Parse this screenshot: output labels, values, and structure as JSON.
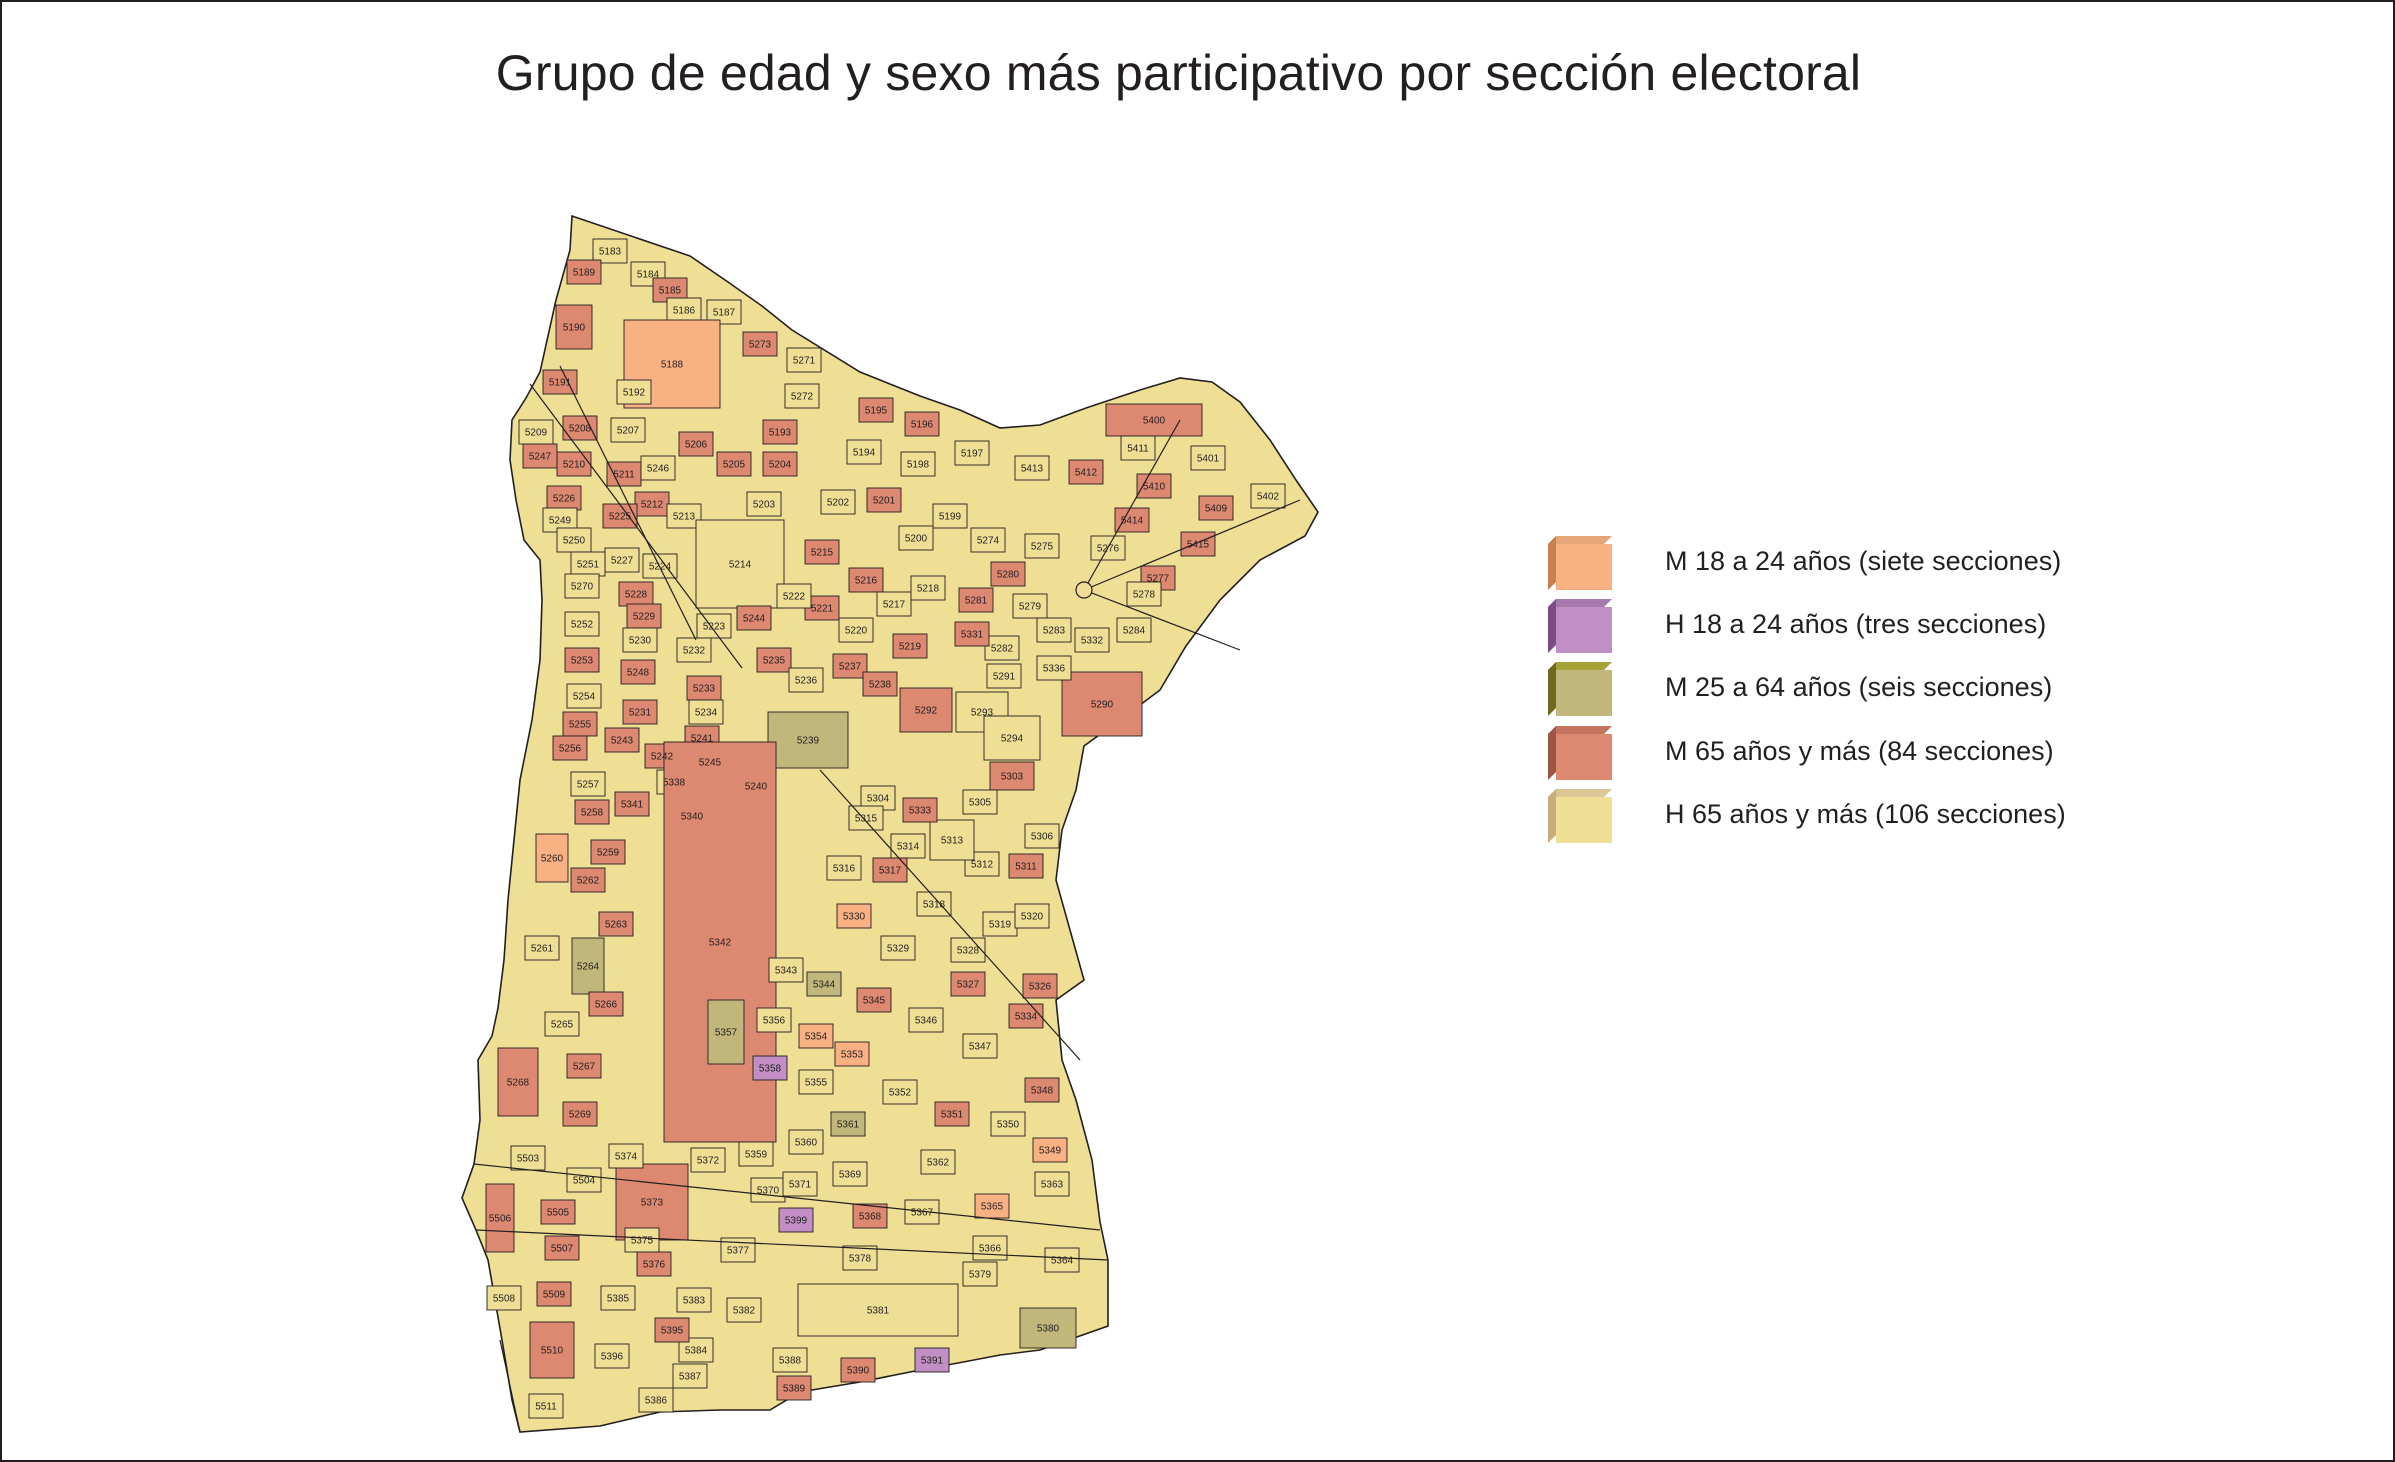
{
  "title": "Grupo de edad y sexo más participativo por sección electoral",
  "legend": [
    {
      "key": "m1824",
      "label": "M 18 a 24 años (siete secciones)",
      "color": "#f9b183",
      "side": "#c97e4f",
      "top": "#e7a57a"
    },
    {
      "key": "h1824",
      "label": "H 18 a 24 años (tres secciones)",
      "color": "#c28fc4",
      "side": "#7c4c84",
      "top": "#a678ad"
    },
    {
      "key": "m2564",
      "label": "M 25 a 64 años (seis secciones)",
      "color": "#c2b77b",
      "side": "#6f6a1f",
      "top": "#a7a238"
    },
    {
      "key": "m65",
      "label": "M 65 años y más (84 secciones)",
      "color": "#dd8870",
      "side": "#a05443",
      "top": "#c4735f"
    },
    {
      "key": "h65",
      "label": "H 65 años y más (106 secciones)",
      "color": "#efdf94",
      "side": "#c9ad7a",
      "top": "#dcc594"
    }
  ],
  "sections": {
    "m1824": [
      "5188",
      "5260",
      "5330",
      "5353",
      "5354",
      "5349",
      "5365"
    ],
    "h1824": [
      "5358",
      "5399",
      "5391"
    ],
    "m2564": [
      "5239",
      "5264",
      "5344",
      "5357",
      "5361",
      "5380"
    ],
    "m65": [
      "5189",
      "5190",
      "5191",
      "5185",
      "5273",
      "5195",
      "5196",
      "5208",
      "5193",
      "5205",
      "5206",
      "5204",
      "5210",
      "5226",
      "5247",
      "5211",
      "5212",
      "5225",
      "5228",
      "5229",
      "5248",
      "5253",
      "5233",
      "5231",
      "5243",
      "5255",
      "5256",
      "5241",
      "5242",
      "5245",
      "5240",
      "5244",
      "5235",
      "5237",
      "5238",
      "5215",
      "5216",
      "5221",
      "5201",
      "5219",
      "5280",
      "5281",
      "5331",
      "5292",
      "5290",
      "5303",
      "5400",
      "5412",
      "5410",
      "5409",
      "5414",
      "5415",
      "5277",
      "5258",
      "5259",
      "5262",
      "5263",
      "5266",
      "5267",
      "5268",
      "5269",
      "5341",
      "5340",
      "5342",
      "5373",
      "5333",
      "5317",
      "5345",
      "5327",
      "5326",
      "5334",
      "5348",
      "5351",
      "5368",
      "5376",
      "5395",
      "5390",
      "5389",
      "5506",
      "5507",
      "5509",
      "5510",
      "5505",
      "5311"
    ],
    "h65": [
      "5183",
      "5184",
      "5186",
      "5187",
      "5192",
      "5207",
      "5209",
      "5271",
      "5272",
      "5194",
      "5198",
      "5197",
      "5413",
      "5411",
      "5401",
      "5402",
      "5276",
      "5275",
      "5274",
      "5199",
      "5200",
      "5202",
      "5203",
      "5213",
      "5214",
      "5246",
      "5227",
      "5224",
      "5249",
      "5250",
      "5251",
      "5270",
      "5252",
      "5230",
      "5232",
      "5223",
      "5222",
      "5220",
      "5217",
      "5218",
      "5236",
      "5234",
      "5254",
      "5257",
      "5338",
      "5278",
      "5279",
      "5283",
      "5284",
      "5282",
      "5332",
      "5336",
      "5291",
      "5293",
      "5294",
      "5304",
      "5305",
      "5306",
      "5313",
      "5315",
      "5314",
      "5312",
      "5316",
      "5318",
      "5319",
      "5320",
      "5328",
      "5329",
      "5343",
      "5346",
      "5347",
      "5350",
      "5352",
      "5355",
      "5356",
      "5359",
      "5360",
      "5362",
      "5363",
      "5364",
      "5366",
      "5367",
      "5369",
      "5370",
      "5371",
      "5372",
      "5374",
      "5375",
      "5377",
      "5378",
      "5379",
      "5381",
      "5382",
      "5383",
      "5384",
      "5385",
      "5386",
      "5387",
      "5388",
      "5396",
      "5503",
      "5504",
      "5508",
      "5511",
      "5261",
      "5265"
    ]
  }
}
